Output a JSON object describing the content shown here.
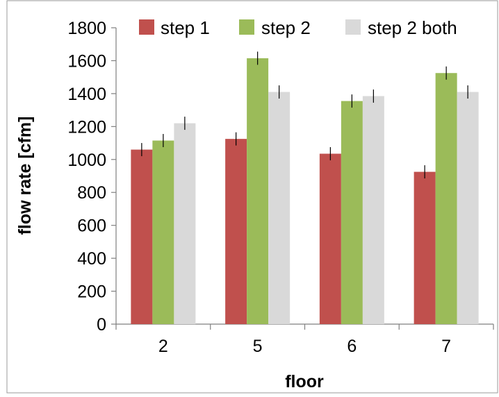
{
  "chart_data": {
    "type": "bar",
    "title": "",
    "xlabel": "floor",
    "ylabel": "flow rate [cfm]",
    "categories": [
      "2",
      "5",
      "6",
      "7"
    ],
    "ylim": [
      0,
      1800
    ],
    "yticks": [
      "0",
      "200",
      "400",
      "600",
      "800",
      "1000",
      "1200",
      "1400",
      "1600",
      "1800"
    ],
    "grid": false,
    "legend_position": "top",
    "error_bar_half_width": 40,
    "series": [
      {
        "name": "step 1",
        "color": "#c0504d",
        "values": [
          1060,
          1125,
          1035,
          925
        ]
      },
      {
        "name": "step 2",
        "color": "#9bbb59",
        "values": [
          1115,
          1615,
          1355,
          1525
        ]
      },
      {
        "name": "step 2 both",
        "color": "#d9d9d9",
        "values": [
          1220,
          1410,
          1385,
          1410
        ]
      }
    ]
  }
}
